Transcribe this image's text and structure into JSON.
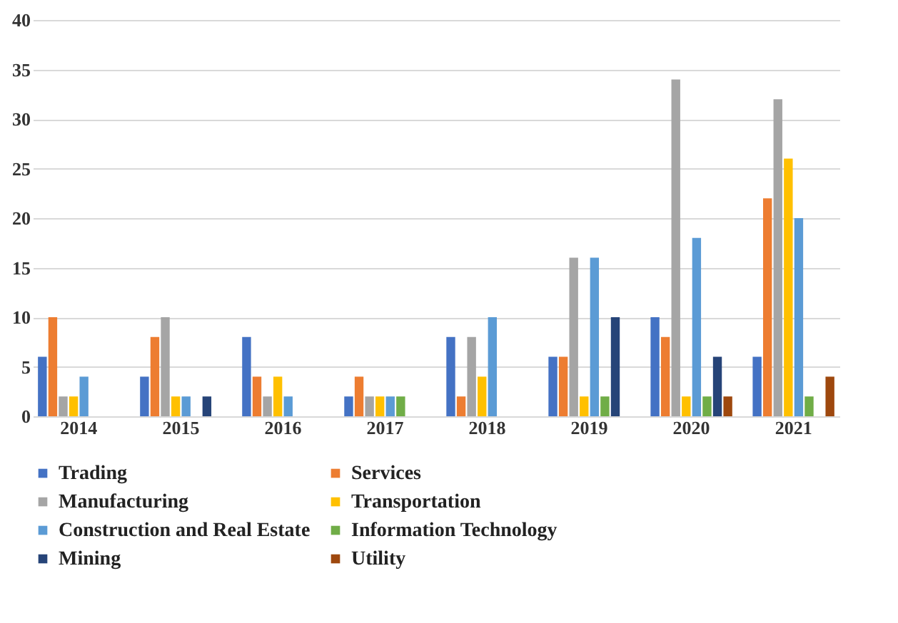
{
  "chart_data": {
    "type": "bar",
    "categories": [
      "2014",
      "2015",
      "2016",
      "2017",
      "2018",
      "2019",
      "2020",
      "2021"
    ],
    "series": [
      {
        "name": "Trading",
        "color": "#4472c4",
        "values": [
          6,
          4,
          8,
          2,
          8,
          6,
          10,
          6
        ]
      },
      {
        "name": "Services",
        "color": "#ed7d31",
        "values": [
          10,
          8,
          4,
          4,
          2,
          6,
          8,
          22
        ]
      },
      {
        "name": "Manufacturing",
        "color": "#a5a5a5",
        "values": [
          2,
          10,
          2,
          2,
          8,
          16,
          34,
          32
        ]
      },
      {
        "name": "Transportation",
        "color": "#ffc000",
        "values": [
          2,
          2,
          4,
          2,
          4,
          2,
          2,
          26
        ]
      },
      {
        "name": "Construction and Real Estate",
        "color": "#5b9bd5",
        "values": [
          4,
          2,
          2,
          2,
          10,
          16,
          18,
          20
        ]
      },
      {
        "name": "Information Technology",
        "color": "#70ad47",
        "values": [
          0,
          0,
          0,
          2,
          0,
          2,
          2,
          2
        ]
      },
      {
        "name": "Mining",
        "color": "#264478",
        "values": [
          0,
          2,
          0,
          0,
          0,
          10,
          6,
          0
        ]
      },
      {
        "name": "Utility",
        "color": "#9e480e",
        "values": [
          0,
          0,
          0,
          0,
          0,
          0,
          2,
          4
        ]
      }
    ],
    "ylim": [
      0,
      40
    ],
    "yticks": [
      0,
      5,
      10,
      15,
      20,
      25,
      30,
      35,
      40
    ],
    "grid": "y",
    "legend": "bottom"
  }
}
